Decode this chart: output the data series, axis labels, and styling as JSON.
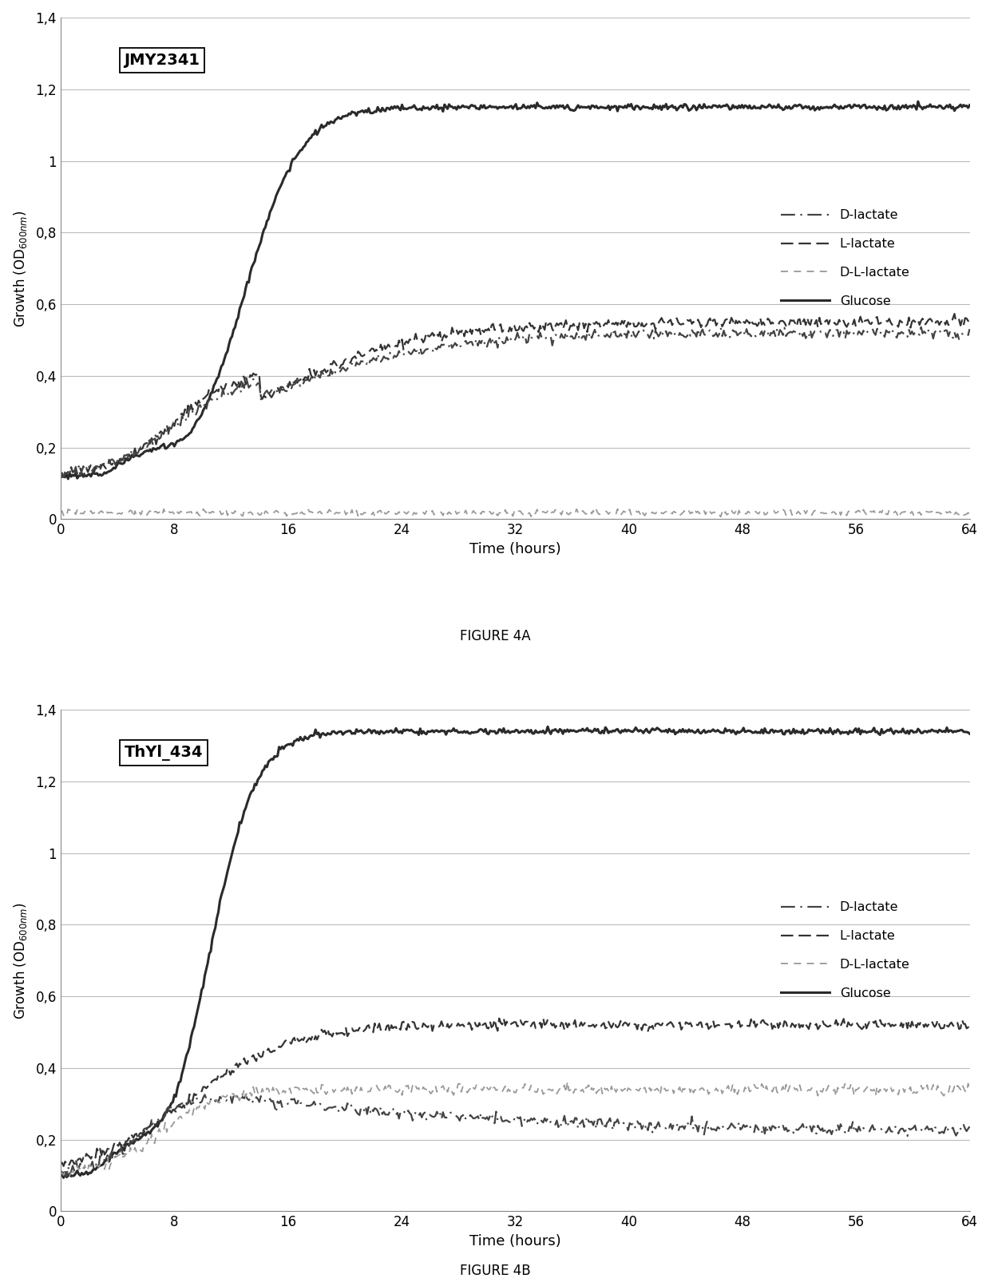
{
  "fig4a": {
    "title": "JMY2341",
    "xlabel": "Time (hours)",
    "ylim": [
      0,
      1.4
    ],
    "xlim": [
      0,
      64
    ],
    "yticks": [
      0,
      0.2,
      0.4,
      0.6,
      0.8,
      1.0,
      1.2,
      1.4
    ],
    "ytick_labels": [
      "0",
      "0,2",
      "0,4",
      "0,6",
      "0,8",
      "1",
      "1,2",
      "1,4"
    ],
    "xticks": [
      0,
      8,
      16,
      24,
      32,
      40,
      48,
      56,
      64
    ],
    "glucose_final": 1.15,
    "l_lactate_final": 0.55,
    "d_lactate_final": 0.52,
    "dl_lactate_final": 0.02,
    "figure_label": "FIGURE 4A"
  },
  "fig4b": {
    "title": "ThYl_434",
    "xlabel": "Time (hours)",
    "ylim": [
      0,
      1.4
    ],
    "xlim": [
      0,
      64
    ],
    "yticks": [
      0,
      0.2,
      0.4,
      0.6,
      0.8,
      1.0,
      1.2,
      1.4
    ],
    "ytick_labels": [
      "0",
      "0,2",
      "0,4",
      "0,6",
      "0,8",
      "1",
      "1,2",
      "1,4"
    ],
    "xticks": [
      0,
      8,
      16,
      24,
      32,
      40,
      48,
      56,
      64
    ],
    "glucose_final": 1.34,
    "l_lactate_final": 0.52,
    "d_lactate_final": 0.22,
    "dl_lactate_final": 0.34,
    "figure_label": "FIGURE 4B"
  },
  "background_color": "#ffffff",
  "grid_color": "#bbbbbb"
}
